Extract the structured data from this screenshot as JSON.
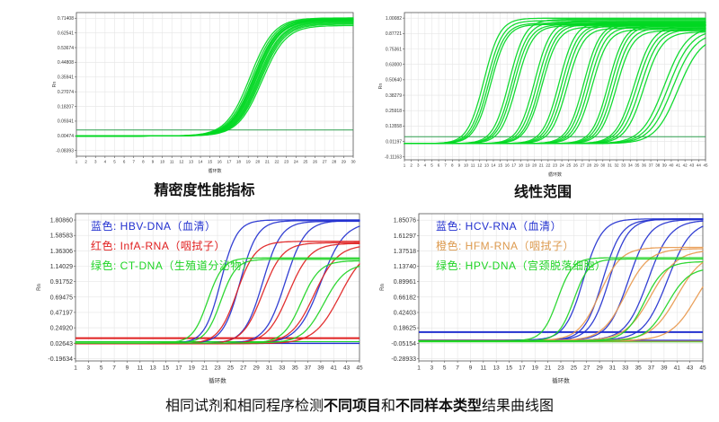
{
  "page": {
    "background": "#ffffff",
    "caption": {
      "prefix": "相同试剂和相同程序检测",
      "bold1": "不同项目",
      "mid": "和",
      "bold2": "不同样本类型",
      "suffix": "结果曲线图"
    }
  },
  "chart_data": [
    {
      "id": "precision",
      "type": "line",
      "title": "精密度性能指标",
      "xlabel": "循环数",
      "ylabel": "Rn",
      "x_domain": [
        1,
        30
      ],
      "x_tick_step": 1,
      "y_domain": [
        -0.118,
        0.748
      ],
      "y_ticks": [
        "0.71408",
        "0.62541",
        "0.53674",
        "0.44808",
        "0.35941",
        "0.27074",
        "0.18207",
        "0.09341",
        "0.00474",
        "-0.08393"
      ],
      "grid": true,
      "legend": [],
      "lines": [
        {
          "y": 0.04,
          "color": "#2f9e4f",
          "width": 1
        }
      ],
      "series": [
        {
          "name": "precision-replicates",
          "color": "#00d822",
          "baseline": 0.004,
          "k": 0.8,
          "curves": [
            {
              "mid": 19.2,
              "plateau": 0.716
            },
            {
              "mid": 19.4,
              "plateau": 0.712
            },
            {
              "mid": 19.55,
              "plateau": 0.707
            },
            {
              "mid": 19.7,
              "plateau": 0.702
            },
            {
              "mid": 19.8,
              "plateau": 0.698
            },
            {
              "mid": 19.9,
              "plateau": 0.705
            },
            {
              "mid": 20.0,
              "plateau": 0.694
            },
            {
              "mid": 20.1,
              "plateau": 0.69
            },
            {
              "mid": 20.2,
              "plateau": 0.684
            },
            {
              "mid": 20.3,
              "plateau": 0.678
            },
            {
              "mid": 20.45,
              "plateau": 0.67
            },
            {
              "mid": 19.65,
              "plateau": 0.71
            }
          ]
        }
      ]
    },
    {
      "id": "linear-range",
      "type": "line",
      "title": "线性范围",
      "xlabel": "循环数",
      "ylabel": "Rn",
      "x_domain": [
        1,
        45
      ],
      "x_tick_step": 1,
      "y_domain": [
        -0.135,
        1.045
      ],
      "y_ticks": [
        "1.00082",
        "0.87721",
        "0.75361",
        "0.63000",
        "0.50640",
        "0.38279",
        "0.25918",
        "0.13558",
        "0.01197",
        "-0.11163"
      ],
      "grid": true,
      "legend": [],
      "lines": [
        {
          "y": 0.05,
          "color": "#2f9e4f",
          "width": 1
        }
      ],
      "series": [
        {
          "name": "dilution-series",
          "color": "#00d822",
          "baseline": -0.005,
          "k": 0.85,
          "curves": [
            {
              "mid": 12.6,
              "plateau": 1.0
            },
            {
              "mid": 13.0,
              "plateau": 0.98
            },
            {
              "mid": 13.3,
              "plateau": 0.96
            },
            {
              "mid": 13.6,
              "plateau": 0.95
            },
            {
              "mid": 16.3,
              "plateau": 0.99
            },
            {
              "mid": 16.7,
              "plateau": 0.97
            },
            {
              "mid": 17.0,
              "plateau": 0.95
            },
            {
              "mid": 17.4,
              "plateau": 0.94
            },
            {
              "mid": 20.0,
              "plateau": 0.98
            },
            {
              "mid": 20.4,
              "plateau": 0.96
            },
            {
              "mid": 20.8,
              "plateau": 0.95
            },
            {
              "mid": 21.1,
              "plateau": 0.93
            },
            {
              "mid": 23.6,
              "plateau": 0.97
            },
            {
              "mid": 24.0,
              "plateau": 0.95
            },
            {
              "mid": 24.4,
              "plateau": 0.94
            },
            {
              "mid": 24.8,
              "plateau": 0.92
            },
            {
              "mid": 27.2,
              "plateau": 0.96
            },
            {
              "mid": 27.6,
              "plateau": 0.95
            },
            {
              "mid": 28.0,
              "plateau": 0.93
            },
            {
              "mid": 28.4,
              "plateau": 0.91
            },
            {
              "mid": 30.8,
              "plateau": 0.95
            },
            {
              "mid": 31.2,
              "plateau": 0.94
            },
            {
              "mid": 31.6,
              "plateau": 0.92
            },
            {
              "mid": 32.0,
              "plateau": 0.9
            },
            {
              "mid": 34.6,
              "plateau": 0.94,
              "k": 0.75
            },
            {
              "mid": 35.0,
              "plateau": 0.92,
              "k": 0.75
            },
            {
              "mid": 35.5,
              "plateau": 0.91,
              "k": 0.75
            },
            {
              "mid": 36.0,
              "plateau": 0.89,
              "k": 0.75
            },
            {
              "mid": 39.0,
              "plateau": 0.93,
              "k": 0.6
            },
            {
              "mid": 39.6,
              "plateau": 0.91,
              "k": 0.6
            },
            {
              "mid": 40.2,
              "plateau": 0.89,
              "k": 0.6
            },
            {
              "mid": 41.0,
              "plateau": 0.86,
              "k": 0.6
            }
          ]
        }
      ]
    },
    {
      "id": "different-projects",
      "type": "line",
      "title": "",
      "xlabel": "循环数",
      "ylabel": "Rn",
      "x_domain": [
        1,
        45
      ],
      "x_tick_step": 2,
      "y_domain": [
        -0.23,
        1.9
      ],
      "y_ticks": [
        "1.80860",
        "1.58583",
        "1.36306",
        "1.14029",
        "0.91752",
        "0.69475",
        "0.47197",
        "0.24920",
        "0.02643",
        "-0.19634"
      ],
      "grid": true,
      "legend": [
        {
          "label": "蓝色: HBV-DNA（血清）",
          "color": "#2230cf"
        },
        {
          "label": "红色: InfA-RNA（咽拭子）",
          "color": "#e02020"
        },
        {
          "label": "绿色: CT-DNA（生殖道分泌物）",
          "color": "#1ed424"
        }
      ],
      "lines": [
        {
          "y": 0.1,
          "color": "#e02020",
          "width": 2
        },
        {
          "y": 0.025,
          "color": "#2230cf",
          "width": 1.5
        },
        {
          "y": 0.05,
          "color": "#1ed424",
          "width": 1
        }
      ],
      "series": [
        {
          "name": "HBV-DNA-serum",
          "color": "#2230cf",
          "baseline": 0.025,
          "k": 0.8,
          "curves": [
            {
              "mid": 23.5,
              "plateau": 1.81,
              "k": 0.8
            },
            {
              "mid": 26.5,
              "plateau": 1.8,
              "k": 0.75
            },
            {
              "mid": 30.0,
              "plateau": 1.79,
              "k": 0.7
            },
            {
              "mid": 33.5,
              "plateau": 1.8,
              "k": 0.65
            },
            {
              "mid": 39.0,
              "plateau": 1.78,
              "k": 0.55
            }
          ]
        },
        {
          "name": "InfA-RNA-throat-swab",
          "color": "#e02020",
          "baseline": 0.02,
          "k": 0.7,
          "curves": [
            {
              "mid": 26.0,
              "plateau": 1.5,
              "k": 0.7
            },
            {
              "mid": 30.0,
              "plateau": 1.48,
              "k": 0.65
            },
            {
              "mid": 34.0,
              "plateau": 1.47,
              "k": 0.6
            },
            {
              "mid": 38.0,
              "plateau": 1.45,
              "k": 0.55
            },
            {
              "mid": 42.0,
              "plateau": 1.43,
              "k": 0.5
            }
          ]
        },
        {
          "name": "CT-DNA-genital-secretion",
          "color": "#1ed424",
          "baseline": 0.03,
          "k": 0.85,
          "curves": [
            {
              "mid": 21.5,
              "plateau": 1.26,
              "k": 0.85
            },
            {
              "mid": 23.5,
              "plateau": 1.24,
              "k": 0.85
            },
            {
              "mid": 36.0,
              "plateau": 1.22,
              "k": 0.7
            },
            {
              "mid": 39.5,
              "plateau": 1.18,
              "k": 0.6
            }
          ]
        }
      ]
    },
    {
      "id": "different-sample-types",
      "type": "line",
      "title": "",
      "xlabel": "循环数",
      "ylabel": "Rn",
      "x_domain": [
        1,
        45
      ],
      "x_tick_step": 2,
      "y_domain": [
        -0.325,
        1.95
      ],
      "y_ticks": [
        "1.85076",
        "1.61297",
        "1.37518",
        "1.13740",
        "0.89961",
        "0.66182",
        "0.42403",
        "0.18625",
        "-0.05154",
        "-0.28933"
      ],
      "grid": true,
      "legend": [
        {
          "label": "蓝色: HCV-RNA（血清）",
          "color": "#2230cf"
        },
        {
          "label": "橙色: HFM-RNA（咽拭子）",
          "color": "#dd9a4e"
        },
        {
          "label": "绿色: HPV-DNA（宫颈脱落细胞）",
          "color": "#1ed424"
        }
      ],
      "lines": [
        {
          "y": 0.12,
          "color": "#2230cf",
          "width": 2
        },
        {
          "y": -0.005,
          "color": "#2230cf",
          "width": 1.2
        },
        {
          "y": -0.03,
          "color": "#1ed424",
          "width": 1
        },
        {
          "y": -0.02,
          "color": "#dd9a4e",
          "width": 1
        }
      ],
      "series": [
        {
          "name": "HCV-RNA-serum",
          "color": "#2230cf",
          "baseline": -0.005,
          "k": 0.7,
          "curves": [
            {
              "mid": 26.5,
              "plateau": 1.87,
              "k": 0.7
            },
            {
              "mid": 29.5,
              "plateau": 1.86,
              "k": 0.7
            },
            {
              "mid": 30.5,
              "plateau": 1.87,
              "k": 0.68
            },
            {
              "mid": 33.5,
              "plateau": 1.86,
              "k": 0.62
            },
            {
              "mid": 36.5,
              "plateau": 1.85,
              "k": 0.58
            },
            {
              "mid": 39.5,
              "plateau": 1.84,
              "k": 0.55
            }
          ]
        },
        {
          "name": "HFM-RNA-throat-swab",
          "color": "#e8994e",
          "baseline": -0.01,
          "k": 0.6,
          "curves": [
            {
              "mid": 29.0,
              "plateau": 1.43,
              "k": 0.6
            },
            {
              "mid": 33.0,
              "plateau": 1.41,
              "k": 0.55
            },
            {
              "mid": 37.0,
              "plateau": 1.39,
              "k": 0.5
            },
            {
              "mid": 41.0,
              "plateau": 1.36,
              "k": 0.5
            },
            {
              "mid": 44.0,
              "plateau": 1.32,
              "k": 0.5
            }
          ]
        },
        {
          "name": "HPV-DNA-cervical-cells",
          "color": "#1ed424",
          "baseline": -0.015,
          "k": 0.85,
          "curves": [
            {
              "mid": 22.5,
              "plateau": 1.27,
              "k": 0.85
            },
            {
              "mid": 25.0,
              "plateau": 1.25,
              "k": 0.85
            },
            {
              "mid": 36.0,
              "plateau": 1.21,
              "k": 0.65
            },
            {
              "mid": 39.5,
              "plateau": 1.12,
              "k": 0.6
            }
          ]
        }
      ]
    }
  ]
}
